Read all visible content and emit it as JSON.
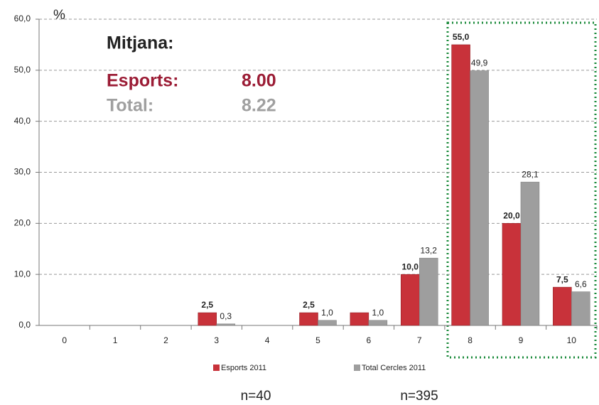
{
  "chart_data": {
    "type": "bar",
    "y_unit": "%",
    "categories": [
      "0",
      "1",
      "2",
      "3",
      "4",
      "5",
      "6",
      "7",
      "8",
      "9",
      "10"
    ],
    "series": [
      {
        "name": "Esports 2011",
        "color": "#c8323a",
        "values": [
          0,
          0,
          0,
          2.5,
          0,
          2.5,
          2.5,
          10,
          55,
          20,
          7.5
        ],
        "value_labels": [
          null,
          null,
          null,
          "2,5",
          null,
          "2,5",
          null,
          "10,0",
          "55,0",
          "20,0",
          "7,5"
        ]
      },
      {
        "name": "Total Cercles 2011",
        "color": "#9e9e9e",
        "values": [
          0,
          0,
          0,
          0.3,
          0,
          1.0,
          1.0,
          13.2,
          49.9,
          28.1,
          6.6
        ],
        "value_labels": [
          null,
          null,
          null,
          "0,3",
          null,
          "1,0",
          "1,0",
          "13,2",
          "49,9",
          "28,1",
          "6,6"
        ]
      }
    ],
    "ylim": [
      0,
      60
    ],
    "yticks": [
      {
        "value": 0,
        "label": "0,0"
      },
      {
        "value": 10,
        "label": "10,0"
      },
      {
        "value": 20,
        "label": "20,0"
      },
      {
        "value": 30,
        "label": "30,0"
      },
      {
        "value": 40,
        "label": "40,0"
      },
      {
        "value": 50,
        "label": "50,0"
      },
      {
        "value": 60,
        "label": "60,0"
      }
    ],
    "grid": true,
    "annotations": {
      "heading": "Mitjana:",
      "esports_label": "Esports:",
      "esports_value": "8.00",
      "total_label": "Total:",
      "total_value": "8.22",
      "n_esports": "n=40",
      "n_total": "n=395"
    }
  }
}
